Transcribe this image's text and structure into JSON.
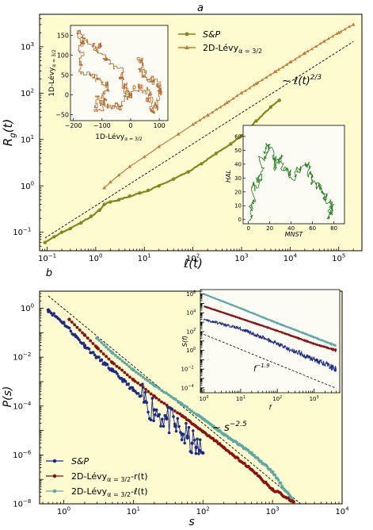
{
  "chart_data": [
    {
      "panel": "a",
      "type": "line",
      "xlabel": "ℓ(t)",
      "ylabel": "R_g(t)",
      "xscale": "log",
      "yscale": "log",
      "xlim": [
        0.07,
        300000
      ],
      "ylim": [
        0.04,
        5000
      ],
      "xticks": [
        "10⁻¹",
        "10⁰",
        "10¹",
        "10²",
        "10³",
        "10⁴",
        "10⁵"
      ],
      "yticks": [
        "10⁻¹",
        "10⁰",
        "10¹",
        "10²",
        "10³"
      ],
      "background": "#fffbd0",
      "annotation": "~ ℓ(t)²ᐟ³",
      "legend_position": "top-center",
      "series": [
        {
          "name": "S&P",
          "color": "#7d8a1c",
          "marker": "circle",
          "x": [
            0.09,
            0.14,
            0.2,
            0.3,
            0.5,
            0.8,
            1.2,
            1.5,
            2,
            3,
            5,
            8,
            12,
            20,
            40,
            80,
            150,
            300,
            600,
            1000,
            2000,
            4000,
            6000
          ],
          "y": [
            0.06,
            0.08,
            0.1,
            0.12,
            0.16,
            0.22,
            0.3,
            0.4,
            0.45,
            0.5,
            0.6,
            0.7,
            0.8,
            1,
            1.4,
            2,
            3,
            5,
            8,
            12,
            25,
            50,
            70
          ]
        },
        {
          "name": "2D-Lévy_{α=3/2}",
          "color": "#c8783a",
          "marker": "triangle",
          "x": [
            1.5,
            2,
            3,
            5,
            10,
            20,
            50,
            100,
            200,
            500,
            1000,
            2000,
            5000,
            10000,
            20000,
            50000,
            100000,
            200000
          ],
          "y": [
            0.9,
            1.2,
            1.7,
            2.6,
            4.2,
            7,
            13,
            21,
            33,
            62,
            100,
            160,
            290,
            460,
            720,
            1300,
            2000,
            3000
          ]
        },
        {
          "name": "~ ℓ(t)²ᐟ³",
          "color": "#000000",
          "dash": "dashed",
          "x": [
            0.09,
            200000
          ],
          "y": [
            0.075,
            1290
          ]
        }
      ]
    },
    {
      "panel": "a-inset-1",
      "type": "line",
      "xlabel": "1D-Lévy_{α=3/2}",
      "ylabel": "1D-Lévy_{α=3/2}",
      "xticks": [
        "−200",
        "−100",
        "0",
        "100"
      ],
      "yticks": [
        "−50",
        "0",
        "50",
        "100",
        "150"
      ],
      "xlim": [
        -210,
        130
      ],
      "ylim": [
        -65,
        175
      ],
      "color": "#b5652a"
    },
    {
      "panel": "a-inset-2",
      "type": "line",
      "xlabel": "MNST",
      "ylabel": "HAL",
      "xticks": [
        "0",
        "20",
        "40",
        "60",
        "80"
      ],
      "yticks": [
        "0",
        "10",
        "20",
        "30",
        "40",
        "50",
        "60"
      ],
      "xlim": [
        -5,
        90
      ],
      "ylim": [
        -3,
        68
      ],
      "color": "#1e7d1e"
    },
    {
      "panel": "b",
      "type": "scatter",
      "xlabel": "s",
      "ylabel": "P(s)",
      "xscale": "log",
      "yscale": "log",
      "xlim": [
        0.45,
        10000
      ],
      "ylim": [
        1e-08,
        5
      ],
      "xticks": [
        "10⁰",
        "10¹",
        "10²",
        "10³",
        "10⁴"
      ],
      "yticks": [
        "10⁻⁸",
        "10⁻⁶",
        "10⁻⁴",
        "10⁻²",
        "10⁰"
      ],
      "background": "#fffbd0",
      "annotation": "~ s⁻²·⁵",
      "legend_position": "bottom-left",
      "series": [
        {
          "name": "S&P",
          "color": "#1a2a86",
          "marker": "circle",
          "x": [
            0.6,
            1,
            1.5,
            2,
            3,
            4,
            5,
            7,
            10,
            15,
            20,
            30,
            40,
            50,
            60,
            70,
            80,
            90,
            100
          ],
          "y": [
            0.85,
            0.25,
            0.07,
            0.03,
            0.01,
            0.005,
            0.0028,
            0.0012,
            0.00045,
            0.00015,
            7e-05,
            3e-05,
            1.5e-05,
            7e-06,
            5e-06,
            3e-06,
            2e-06,
            1.5e-06,
            1.2e-06
          ]
        },
        {
          "name": "2D-Lévy_{α=3/2}-r(t)",
          "color": "#8b1010",
          "marker": "circle",
          "x": [
            1.2,
            2,
            3,
            5,
            10,
            20,
            50,
            100,
            200,
            500,
            1000,
            2000
          ],
          "y": [
            0.35,
            0.08,
            0.025,
            0.006,
            0.0012,
            0.00025,
            4e-05,
            9e-06,
            2e-06,
            2.5e-07,
            4e-08,
            1.2e-08
          ]
        },
        {
          "name": "2D-Lévy_{α=3/2}-ℓ(t)",
          "color": "#5ea8a8",
          "marker": "circle",
          "x": [
            3,
            5,
            10,
            20,
            50,
            100,
            200,
            500,
            1000,
            2000
          ],
          "y": [
            0.06,
            0.015,
            0.003,
            0.0007,
            0.00012,
            3e-05,
            7e-06,
            1.2e-06,
            2e-07,
            1.2e-08
          ]
        },
        {
          "name": "~ s⁻²·⁵",
          "color": "#000000",
          "dash": "dashed",
          "x": [
            0.6,
            2500
          ],
          "y": [
            3.2,
            1.03e-08
          ]
        }
      ]
    },
    {
      "panel": "b-inset",
      "type": "line",
      "xlabel": "f",
      "ylabel": "S(f)",
      "xscale": "log",
      "yscale": "log",
      "xlim": [
        0.8,
        5000
      ],
      "ylim": [
        3e-05,
        3000000
      ],
      "xticks": [
        "10⁰",
        "10¹",
        "10²",
        "10³"
      ],
      "yticks": [
        "10⁻⁴",
        "10⁻²",
        "10⁰",
        "10²",
        "10⁴",
        "10⁶"
      ],
      "annotation": "f⁻¹·⁹",
      "series": [
        {
          "color": "#5ea8a8",
          "x": [
            1,
            10,
            100,
            1000,
            4000
          ],
          "y": [
            1000000,
            30000,
            800,
            25,
            3
          ]
        },
        {
          "color": "#8b1010",
          "x": [
            1,
            10,
            100,
            1000,
            4000
          ],
          "y": [
            50000,
            2500,
            120,
            5,
            1
          ]
        },
        {
          "color": "#1a2a86",
          "x": [
            1,
            10,
            100,
            1000,
            4000
          ],
          "y": [
            2000,
            200,
            5,
            0.1,
            0.01
          ]
        },
        {
          "color": "#000000",
          "dash": "dashed",
          "x": [
            1,
            4000
          ],
          "y": [
            50,
            9e-05
          ]
        }
      ]
    }
  ],
  "panels": {
    "a": {
      "letter": "a",
      "xlabel": "ℓ(t)",
      "ylabel": "R",
      "ylabel_sub": "g",
      "ylabel_rest": "(t)",
      "annotation": "~ ℓ(t)",
      "annotation_exp": "2/3",
      "legend": [
        {
          "label": "S&P"
        },
        {
          "label": "2D-Lévy",
          "sub": "α = 3/2"
        }
      ],
      "xticks": [
        "10",
        "10",
        "10",
        "10",
        "10",
        "10",
        "10"
      ],
      "xtick_exps": [
        "−1",
        "0",
        "1",
        "2",
        "3",
        "4",
        "5"
      ],
      "yticks": [
        "10",
        "10",
        "10",
        "10",
        "10"
      ],
      "ytick_exps": [
        "−1",
        "0",
        "1",
        "2",
        "3"
      ],
      "inset1": {
        "xlabel": "1D-Lévy",
        "xlabel_sub": "α = 3/2",
        "ylabel": "1D-Lévy",
        "ylabel_sub": "α = 3/2",
        "xticks": [
          "−200",
          "−100",
          "0",
          "100"
        ],
        "yticks": [
          "−50",
          "0",
          "50",
          "100",
          "150"
        ]
      },
      "inset2": {
        "xlabel": "MNST",
        "ylabel": "HAL",
        "xticks": [
          "0",
          "20",
          "40",
          "60",
          "80"
        ],
        "yticks": [
          "0",
          "10",
          "20",
          "30",
          "40",
          "50",
          "60"
        ]
      }
    },
    "b": {
      "letter": "b",
      "xlabel": "s",
      "ylabel": "P(s)",
      "annotation": "~ s",
      "annotation_exp": "−2.5",
      "legend": [
        {
          "label": "S&P"
        },
        {
          "label": "2D-Lévy",
          "sub": "α = 3/2",
          "rest": "-r(t)"
        },
        {
          "label": "2D-Lévy",
          "sub": "α = 3/2",
          "rest": "-ℓ(t)"
        }
      ],
      "xticks": [
        "10",
        "10",
        "10",
        "10",
        "10"
      ],
      "xtick_exps": [
        "0",
        "1",
        "2",
        "3",
        "4"
      ],
      "yticks": [
        "10",
        "10",
        "10",
        "10",
        "10"
      ],
      "ytick_exps": [
        "−8",
        "−6",
        "−4",
        "−2",
        "0"
      ],
      "inset": {
        "xlabel": "f",
        "ylabel": "S(f)",
        "annotation": "f",
        "annotation_exp": "−1.9",
        "xticks": [
          "10",
          "10",
          "10",
          "10"
        ],
        "xtick_exps": [
          "0",
          "1",
          "2",
          "3"
        ],
        "yticks": [
          "10",
          "10",
          "10",
          "10",
          "10",
          "10"
        ],
        "ytick_exps": [
          "−4",
          "−2",
          "0",
          "2",
          "4",
          "6"
        ]
      }
    }
  }
}
